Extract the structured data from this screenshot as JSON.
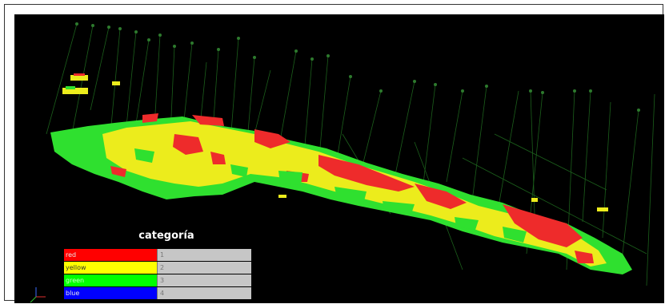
{
  "legend": {
    "title": "categoría",
    "items": [
      {
        "label": "red",
        "value": "1",
        "color": "#ff0000"
      },
      {
        "label": "yellow",
        "value": "2",
        "color": "#ffff00"
      },
      {
        "label": "green",
        "value": "3",
        "color": "#00ff00"
      },
      {
        "label": "blue",
        "value": "4",
        "color": "#0000ff"
      }
    ]
  },
  "colors": {
    "background": "#000000",
    "red": "#ee2b2b",
    "yellow": "#ecec1c",
    "green": "#2fe02f",
    "drillhole": "#1f6a1f"
  },
  "icons": [
    "axis-triad-icon"
  ]
}
